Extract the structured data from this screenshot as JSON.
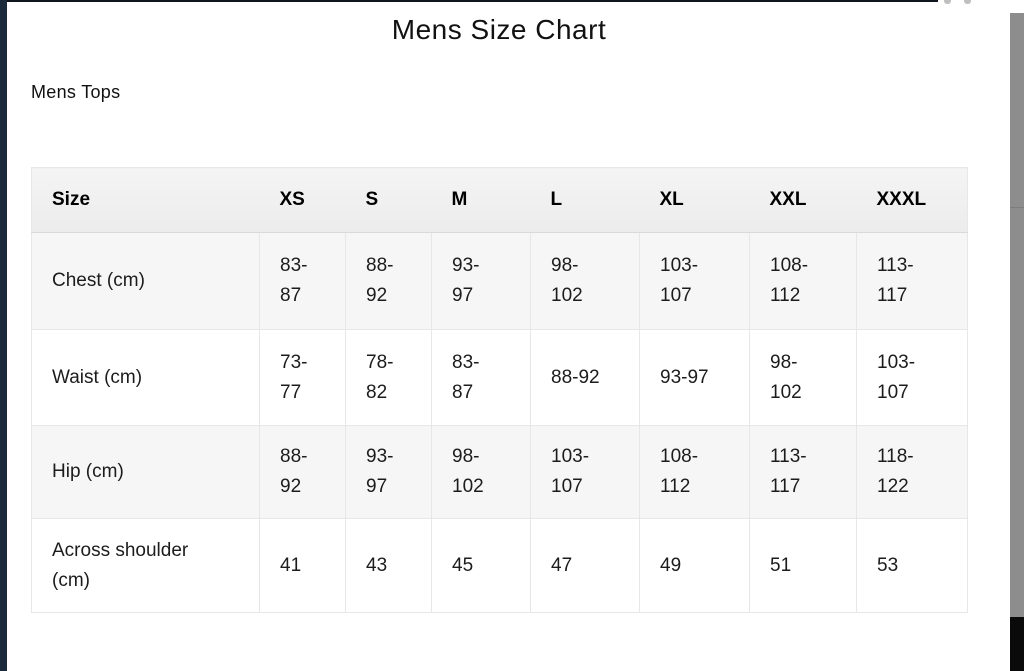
{
  "page": {
    "title": "Mens Size Chart",
    "section_label": "Mens Tops"
  },
  "size_chart": {
    "columns": [
      "Size",
      "XS",
      "S",
      "M",
      "L",
      "XL",
      "XXL",
      "XXXL"
    ],
    "rows": [
      {
        "label": "Chest (cm)",
        "values": [
          "83-\n87",
          "88-\n92",
          "93-\n97",
          "98-\n102",
          "103-\n107",
          "108-\n112",
          "113-\n117"
        ]
      },
      {
        "label": "Waist (cm)",
        "values": [
          "73-\n77",
          "78-\n82",
          "83-\n87",
          "88-92",
          "93-97",
          "98-\n102",
          "103-\n107"
        ]
      },
      {
        "label": "Hip (cm)",
        "values": [
          "88-\n92",
          "93-\n97",
          "98-\n102",
          "103-\n107",
          "108-\n112",
          "113-\n117",
          "118-\n122"
        ]
      },
      {
        "label": "Across shoulder\n(cm)",
        "values": [
          "41",
          "43",
          "45",
          "47",
          "49",
          "51",
          "53"
        ]
      }
    ]
  },
  "colors": {
    "left_edge_strip": "#1b2a3a",
    "scrollbar_thumb": "#8d8d8d",
    "scrollbar_track_bottom": "#0a0a0a",
    "header_row_background": "#efefef",
    "shaded_row_background": "#f6f6f6",
    "table_border": "#e7e7e7"
  }
}
